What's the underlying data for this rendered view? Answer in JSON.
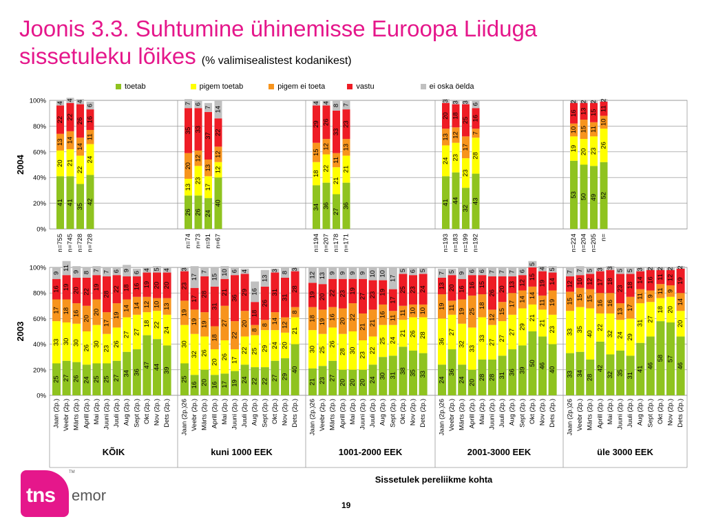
{
  "title": {
    "line1": "Joonis 3.3. Suhtumine ühinemisse Euroopa Liiduga",
    "line2": "sissetuleku lõikes",
    "sub": "(% valimisealistest kodanikest)"
  },
  "page_number": "19",
  "logo": {
    "tns": "tns",
    "emor": "emor",
    "tm": "TM"
  },
  "colors": {
    "toetab": "#8fc31f",
    "pigem_toetab": "#ffff00",
    "pigem_ei_toeta": "#f7941d",
    "vastu": "#ee1c25",
    "ei_oska": "#c0c0c0",
    "title": "#e5178b"
  },
  "chart_data": [
    {
      "type": "bar",
      "stacked": true,
      "title": "",
      "ylabel": "2004",
      "xlabel": "Sissetulek pereliikme kohta",
      "ylim": [
        0,
        100
      ],
      "yticks": [
        "0%",
        "20%",
        "40%",
        "60%",
        "80%",
        "100%"
      ],
      "grid": true,
      "legend": [
        "toetab",
        "pigem toetab",
        "pigem ei toeta",
        "vastu",
        "ei oska öelda"
      ],
      "groups": [
        {
          "name": "KÕIK",
          "categories": [
            "n=755",
            "n=745",
            "n=728",
            "n=728"
          ],
          "series": [
            {
              "name": "toetab",
              "values": [
                41,
                41,
                35,
                42
              ]
            },
            {
              "name": "pigem toetab",
              "values": [
                20,
                21,
                22,
                24
              ]
            },
            {
              "name": "pigem ei toeta",
              "values": [
                13,
                14,
                14,
                11
              ]
            },
            {
              "name": "vastu",
              "values": [
                22,
                22,
                26,
                16
              ]
            },
            {
              "name": "ei oska öelda",
              "values": [
                4,
                4,
                4,
                6
              ]
            }
          ]
        },
        {
          "name": "kuni 1000 EEK",
          "categories": [
            "n=74",
            "n=73",
            "n=91",
            "n=67"
          ],
          "series": [
            {
              "name": "toetab",
              "values": [
                26,
                26,
                24,
                40
              ]
            },
            {
              "name": "pigem toetab",
              "values": [
                13,
                23,
                17,
                12
              ]
            },
            {
              "name": "pigem ei toeta",
              "values": [
                20,
                12,
                13,
                12
              ]
            },
            {
              "name": "vastu",
              "values": [
                35,
                33,
                37,
                22
              ]
            },
            {
              "name": "ei oska öelda",
              "values": [
                7,
                6,
                7,
                14
              ]
            }
          ]
        },
        {
          "name": "1001-2000 EEK",
          "categories": [
            "n=194",
            "n=207",
            "n=178",
            "n=171"
          ],
          "series": [
            {
              "name": "toetab",
              "values": [
                34,
                36,
                27,
                36
              ]
            },
            {
              "name": "pigem toetab",
              "values": [
                18,
                22,
                21,
                21
              ]
            },
            {
              "name": "pigem ei toeta",
              "values": [
                15,
                12,
                11,
                13
              ]
            },
            {
              "name": "vastu",
              "values": [
                29,
                26,
                33,
                23
              ]
            },
            {
              "name": "ei oska öelda",
              "values": [
                4,
                4,
                8,
                7
              ]
            }
          ]
        },
        {
          "name": "2001-3000 EEK",
          "categories": [
            "n=193",
            "n=183",
            "n=199",
            "n=192"
          ],
          "series": [
            {
              "name": "toetab",
              "values": [
                41,
                44,
                32,
                43
              ]
            },
            {
              "name": "pigem toetab",
              "values": [
                24,
                23,
                23,
                28
              ]
            },
            {
              "name": "pigem ei toeta",
              "values": [
                13,
                12,
                17,
                7
              ]
            },
            {
              "name": "vastu",
              "values": [
                20,
                18,
                25,
                16
              ]
            },
            {
              "name": "ei oska öelda",
              "values": [
                3,
                3,
                3,
                6
              ]
            }
          ]
        },
        {
          "name": "üle 3000 EEK",
          "categories": [
            "n=224",
            "n=204",
            "n=205",
            "n="
          ],
          "series": [
            {
              "name": "toetab",
              "values": [
                53,
                50,
                49,
                52
              ]
            },
            {
              "name": "pigem toetab",
              "values": [
                19,
                20,
                23,
                26
              ]
            },
            {
              "name": "pigem ei toeta",
              "values": [
                10,
                15,
                11,
                10
              ]
            },
            {
              "name": "vastu",
              "values": [
                16,
                13,
                15,
                11
              ]
            },
            {
              "name": "ei oska öelda",
              "values": [
                2,
                2,
                2,
                2
              ]
            }
          ]
        }
      ]
    },
    {
      "type": "bar",
      "stacked": true,
      "title": "",
      "ylabel": "2003",
      "xlabel": "Sissetulek pereliikme kohta",
      "ylim": [
        0,
        100
      ],
      "yticks": [
        "0%",
        "20%",
        "40%",
        "60%",
        "80%",
        "100%"
      ],
      "grid": true,
      "groups": [
        {
          "name": "KÕIK",
          "categories": [
            "Jaan (2p.)",
            "Veebr (2p.)",
            "Märts (2p.)",
            "Aprill (2p.)",
            "Mai (2p.)",
            "Juuni (2p.)",
            "Juuli (2p.)",
            "Aug (2p.)",
            "Sept (2p.)",
            "Okt (2p.)",
            "Nov (2p.)",
            "Dets (2p.)"
          ],
          "series": [
            {
              "name": "toetab",
              "values": [
                25,
                27,
                26,
                24,
                25,
                25,
                27,
                34,
                36,
                47,
                44,
                39
              ]
            },
            {
              "name": "pigem toetab",
              "values": [
                33,
                30,
                30,
                26,
                30,
                23,
                26,
                27,
                27,
                18,
                22,
                24
              ]
            },
            {
              "name": "pigem ei toeta",
              "values": [
                17,
                18,
                16,
                20,
                20,
                17,
                19,
                14,
                14,
                12,
                10,
                13
              ]
            },
            {
              "name": "vastu",
              "values": [
                16,
                19,
                20,
                22,
                19,
                28,
                22,
                18,
                16,
                19,
                20,
                20
              ]
            },
            {
              "name": "ei oska öelda",
              "values": [
                9,
                11,
                9,
                8,
                7,
                7,
                6,
                9,
                6,
                4,
                5,
                4
              ]
            }
          ]
        },
        {
          "name": "kuni 1000 EEK",
          "categories": [
            "Jaan (2p.)26",
            "Veebr (2p.)",
            "Märts (2p.)",
            "Aprill (2p.)",
            "Mai (2p.)",
            "Juuni (2p.)",
            "Juuli (2p.)",
            "Aug (2p.)",
            "Sept (2p.)",
            "Okt (2p.)",
            "Nov (2p.)",
            "Dets (2p.)"
          ],
          "series": [
            {
              "name": "toetab",
              "values": [
                25,
                16,
                20,
                16,
                17,
                19,
                24,
                22,
                22,
                27,
                29,
                40
              ]
            },
            {
              "name": "pigem toetab",
              "values": [
                30,
                32,
                26,
                20,
                26,
                17,
                22,
                25,
                29,
                24,
                20,
                21
              ]
            },
            {
              "name": "pigem ei toeta",
              "values": [
                19,
                19,
                19,
                18,
                27,
                22,
                20,
                8,
                8,
                14,
                12,
                8
              ]
            },
            {
              "name": "vastu",
              "values": [
                23,
                17,
                28,
                31,
                21,
                36,
                29,
                18,
                26,
                31,
                31,
                28
              ]
            },
            {
              "name": "ei oska öelda",
              "values": [
                3,
                17,
                7,
                15,
                10,
                6,
                4,
                16,
                13,
                3,
                8,
                3
              ]
            }
          ]
        },
        {
          "name": "1001-2000 EEK",
          "categories": [
            "Jaan (2p.)26",
            "Veebr (2p.)",
            "Märts (2p.)",
            "Aprill (2p.)",
            "Mai (2p.)",
            "Juuni (2p.)",
            "Juuli (2p.)",
            "Aug (2p.)",
            "Sept (2p.)",
            "Okt (2p.)",
            "Nov (2p.)",
            "Dets (2p.)"
          ],
          "series": [
            {
              "name": "toetab",
              "values": [
                21,
                23,
                27,
                20,
                20,
                20,
                24,
                30,
                31,
                38,
                35,
                33
              ]
            },
            {
              "name": "pigem toetab",
              "values": [
                30,
                25,
                26,
                28,
                30,
                23,
                22,
                25,
                24,
                21,
                26,
                28
              ]
            },
            {
              "name": "pigem ei toeta",
              "values": [
                18,
                19,
                16,
                20,
                22,
                21,
                21,
                16,
                11,
                11,
                10,
                10
              ]
            },
            {
              "name": "vastu",
              "values": [
                19,
                20,
                22,
                23,
                19,
                27,
                23,
                19,
                17,
                25,
                23,
                24
              ]
            },
            {
              "name": "ei oska öelda",
              "values": [
                12,
                13,
                9,
                9,
                9,
                9,
                10,
                10,
                17,
                5,
                6,
                5
              ]
            }
          ]
        },
        {
          "name": "2001-3000 EEK",
          "categories": [
            "Jaan (2p.)26",
            "Veebr (2p.)",
            "Märts (2p.)",
            "Aprill (2p.)",
            "Mai (2p.)",
            "Juuni (2p.)",
            "Juuli (2p.)",
            "Aug (2p.)",
            "Sept (2p.)",
            "Okt (2p.)",
            "Nov (2p.)",
            "Dets (2p.)"
          ],
          "series": [
            {
              "name": "toetab",
              "values": [
                24,
                36,
                24,
                20,
                28,
                28,
                31,
                36,
                39,
                50,
                46,
                40
              ]
            },
            {
              "name": "pigem toetab",
              "values": [
                36,
                27,
                32,
                33,
                33,
                27,
                27,
                27,
                29,
                21,
                21,
                23
              ]
            },
            {
              "name": "pigem ei toeta",
              "values": [
                19,
                11,
                19,
                25,
                18,
                12,
                15,
                17,
                14,
                14,
                11,
                19
              ]
            },
            {
              "name": "vastu",
              "values": [
                13,
                20,
                16,
                16,
                15,
                26,
                20,
                13,
                12,
                15,
                19,
                14
              ]
            },
            {
              "name": "ei oska öelda",
              "values": [
                7,
                5,
                9,
                6,
                6,
                7,
                7,
                7,
                6,
                5,
                4,
                5
              ]
            }
          ]
        },
        {
          "name": "üle 3000 EEK",
          "categories": [
            "Jaan (2p.)26",
            "Veebr (2p.)",
            "Märts (2p.)",
            "Aprill (2p.)",
            "Mai (2p.)",
            "Juuni (2p.)",
            "Juuli (2p.)",
            "Aug (2p.)",
            "Sept (2p.)",
            "Okt (2p.)",
            "Nov (2p.)",
            "Dets (2p.)"
          ],
          "series": [
            {
              "name": "toetab",
              "values": [
                33,
                34,
                28,
                42,
                32,
                35,
                31,
                41,
                46,
                58,
                57,
                46
              ]
            },
            {
              "name": "pigem toetab",
              "values": [
                33,
                35,
                40,
                22,
                32,
                24,
                29,
                31,
                27,
                18,
                20,
                20
              ]
            },
            {
              "name": "pigem ei toeta",
              "values": [
                15,
                15,
                15,
                16,
                16,
                13,
                17,
                11,
                9,
                11,
                9,
                14
              ]
            },
            {
              "name": "vastu",
              "values": [
                12,
                10,
                12,
                17,
                18,
                23,
                18,
                14,
                16,
                11,
                12,
                19
              ]
            },
            {
              "name": "ei oska öelda",
              "values": [
                7,
                7,
                5,
                3,
                3,
                5,
                5,
                3,
                2,
                2,
                2,
                2
              ]
            }
          ]
        }
      ]
    }
  ]
}
